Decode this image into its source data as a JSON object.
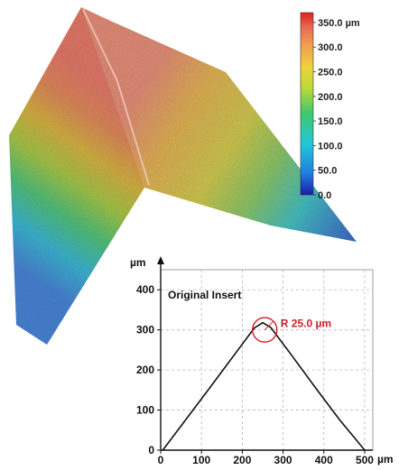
{
  "surface_map": {
    "colorbar": {
      "tick_labels": [
        "350.0 µm",
        "300.0",
        "250.0",
        "200.0",
        "150.0",
        "100.0",
        "50.0",
        "0.0"
      ],
      "tick_values": [
        350,
        300,
        250,
        200,
        150,
        100,
        50,
        0
      ],
      "range": [
        0,
        370
      ],
      "colors": [
        "#1e1aa8",
        "#1f7fe0",
        "#20c8d8",
        "#3fc86a",
        "#b8d83a",
        "#f0d23a",
        "#f0a050",
        "#e66a55",
        "#e02020"
      ]
    }
  },
  "chart_data": {
    "type": "line",
    "title": "Original Insert",
    "x_unit_label": "µm",
    "y_unit_label": "µm",
    "xlim": [
      0,
      520
    ],
    "ylim": [
      0,
      450
    ],
    "x_ticks": [
      0,
      100,
      200,
      300,
      400,
      500
    ],
    "y_ticks": [
      0,
      100,
      200,
      300,
      400
    ],
    "x_tick_labels": [
      "0",
      "100",
      "200",
      "300",
      "400",
      "500"
    ],
    "y_tick_labels": [
      "0",
      "100",
      "200",
      "300",
      "400"
    ],
    "grid": true,
    "series": [
      {
        "color": "#111111",
        "x": [
          5,
          60,
          120,
          180,
          230,
          250,
          270,
          320,
          380,
          440,
          500
        ],
        "y": [
          0,
          74,
          155,
          237,
          305,
          318,
          306,
          238,
          155,
          74,
          0
        ]
      }
    ],
    "annotation": {
      "text": "R 25.0 µm",
      "color": "#d0202a",
      "circle_center": [
        255,
        300
      ],
      "circle_radius": 25
    }
  }
}
